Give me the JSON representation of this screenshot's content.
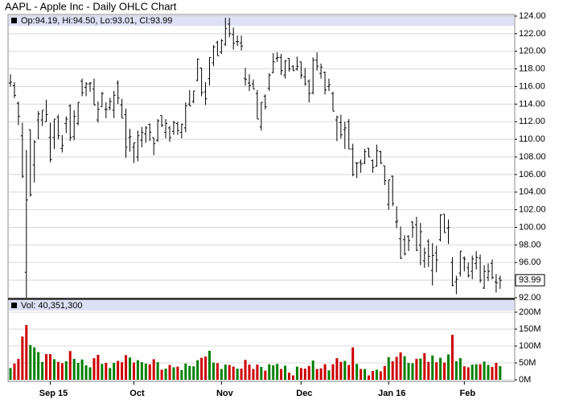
{
  "chart_data": {
    "type": "ohlc",
    "title": "AAPL - Apple Inc - Daily OHLC Chart",
    "ohlc_label": "Op:94.19, Hi:94.50, Lo:93.01, Cl:93.99",
    "volume_label": "Vol: 40,351,300",
    "categories": [
      null,
      null,
      null,
      null,
      null,
      null,
      null,
      null,
      null,
      null,
      "Sep 15",
      null,
      null,
      null,
      null,
      null,
      null,
      null,
      null,
      null,
      null,
      null,
      null,
      null,
      null,
      null,
      null,
      null,
      null,
      null,
      null,
      "Oct",
      null,
      null,
      null,
      null,
      null,
      null,
      null,
      null,
      null,
      null,
      null,
      null,
      null,
      null,
      null,
      null,
      null,
      null,
      null,
      null,
      null,
      "Nov",
      null,
      null,
      null,
      null,
      null,
      null,
      null,
      null,
      null,
      null,
      null,
      null,
      null,
      null,
      null,
      null,
      null,
      null,
      null,
      "Dec",
      null,
      null,
      null,
      null,
      null,
      null,
      null,
      null,
      null,
      null,
      null,
      null,
      null,
      null,
      null,
      null,
      null,
      null,
      null,
      null,
      null,
      "Jan 16",
      null,
      null,
      null,
      null,
      null,
      null,
      null,
      null,
      null,
      null,
      null,
      null,
      null,
      null,
      null,
      null,
      null,
      null,
      "Feb",
      null,
      null,
      null,
      null,
      null,
      null,
      null,
      null,
      null
    ],
    "open": [
      116.4,
      116.1,
      114.1,
      110.4,
      94.9,
      111.1,
      107.1,
      112.2,
      112.2,
      112.0,
      110.2,
      110.2,
      112.5,
      108.97,
      111.8,
      113.8,
      110.3,
      111.8,
      116.6,
      115.9,
      116.3,
      115.7,
      112.2,
      113.7,
      113.4,
      113.6,
      113.3,
      116.4,
      113.9,
      112.8,
      110.2,
      109.1,
      108.0,
      109.9,
      110.6,
      111.7,
      110.2,
      109.9,
      112.7,
      110.8,
      111.3,
      110.9,
      111.8,
      110.8,
      111.3,
      114.0,
      114.3,
      116.7,
      118.1,
      115.4,
      116.9,
      118.7,
      120.99,
      119.9,
      120.8,
      123.1,
      121.9,
      121.1,
      120.96,
      116.9,
      116.4,
      116.3,
      115.2,
      111.4,
      114.9,
      115.8,
      117.6,
      119.2,
      119.3,
      117.3,
      119.2,
      118.3,
      117.99,
      118.8,
      117.1,
      116.6,
      115.3,
      118.98,
      117.5,
      117.6,
      116.0,
      115.2,
      112.2,
      111.9,
      111.1,
      112.0,
      108.9,
      107.3,
      107.4,
      107.3,
      109.0,
      107.6,
      106.96,
      108.6,
      107.0,
      102.6,
      105.8,
      100.6,
      98.7,
      98.6,
      98.97,
      100.6,
      100.3,
      97.96,
      96.2,
      98.4,
      95.1,
      97.1,
      98.6,
      101.5,
      99.9,
      96.0,
      93.8,
      94.8,
      96.5,
      95.4,
      95.0,
      95.9,
      96.5,
      93.1,
      94.3,
      95.9,
      93.8,
      94.19
    ],
    "high": [
      117.4,
      116.5,
      114.3,
      111.9,
      108.8,
      111.1,
      109.9,
      113.2,
      113.3,
      114.5,
      111.9,
      112.3,
      112.8,
      110.5,
      112.6,
      114.0,
      113.3,
      114.2,
      116.9,
      116.5,
      116.5,
      116.9,
      114.3,
      115.4,
      114.2,
      114.7,
      115.5,
      116.7,
      114.6,
      113.5,
      111.2,
      109.6,
      111.0,
      111.4,
      111.5,
      111.8,
      110.2,
      112.3,
      112.7,
      112.3,
      111.5,
      112.1,
      112.0,
      111.8,
      114.2,
      115.6,
      115.5,
      119.2,
      118.1,
      116.5,
      119.3,
      120.7,
      121.2,
      121.4,
      123.8,
      123.8,
      122.7,
      121.8,
      121.8,
      118.1,
      117.4,
      116.8,
      115.6,
      114.2,
      115.1,
      117.5,
      119.8,
      119.9,
      119.7,
      119.0,
      119.2,
      118.4,
      119.4,
      118.8,
      118.1,
      116.8,
      119.3,
      119.9,
      118.6,
      117.7,
      116.9,
      115.4,
      112.7,
      112.8,
      112.0,
      112.3,
      109.5,
      107.4,
      107.7,
      108.9,
      109.0,
      107.7,
      109.4,
      108.7,
      107.0,
      105.4,
      105.9,
      102.4,
      100.1,
      99.1,
      99.1,
      100.7,
      101.2,
      100.5,
      97.7,
      98.65,
      98.2,
      97.9,
      101.5,
      101.5,
      100.9,
      96.6,
      94.5,
      97.3,
      96.7,
      96.0,
      96.8,
      97.3,
      96.9,
      95.7,
      95.9,
      96.35,
      94.7,
      94.5
    ],
    "low": [
      116.0,
      114.7,
      111.6,
      105.6,
      92.0,
      103.5,
      105.1,
      110.0,
      111.5,
      112.0,
      107.4,
      108.9,
      110.0,
      108.5,
      110.7,
      109.8,
      109.9,
      111.6,
      114.9,
      114.9,
      115.4,
      113.9,
      111.9,
      113.7,
      112.4,
      113.3,
      112.4,
      114.0,
      112.4,
      107.9,
      108.6,
      107.3,
      107.5,
      109.1,
      109.6,
      109.8,
      108.2,
      109.7,
      111.4,
      110.1,
      109.7,
      110.5,
      110.5,
      110.1,
      110.8,
      113.8,
      114.1,
      116.6,
      114.9,
      113.9,
      116.1,
      118.3,
      119.5,
      119.7,
      120.6,
      121.6,
      120.2,
      120.6,
      120.1,
      116.1,
      115.5,
      115.7,
      112.3,
      111.0,
      113.4,
      115.5,
      117.5,
      118.8,
      117.3,
      116.9,
      117.7,
      117.8,
      117.8,
      116.9,
      116.1,
      114.2,
      115.1,
      117.8,
      116.9,
      115.1,
      115.5,
      113.2,
      109.8,
      110.1,
      108.9,
      108.9,
      105.8,
      105.6,
      106.2,
      107.2,
      107.95,
      106.2,
      106.9,
      107.2,
      104.8,
      102.0,
      102.4,
      99.9,
      96.4,
      96.8,
      97.3,
      98.8,
      97.3,
      95.7,
      95.4,
      95.5,
      93.4,
      94.9,
      98.4,
      99.4,
      98.1,
      93.3,
      92.4,
      94.4,
      95.0,
      94.3,
      94.1,
      95.2,
      93.7,
      93.0,
      93.9,
      94.1,
      92.6,
      93.01
    ],
    "close": [
      116.5,
      115.0,
      112.6,
      105.8,
      103.1,
      103.7,
      109.7,
      112.9,
      113.3,
      112.8,
      107.7,
      112.3,
      110.4,
      109.3,
      112.3,
      110.2,
      112.6,
      114.2,
      115.3,
      116.3,
      116.4,
      113.9,
      113.4,
      115.2,
      113.4,
      114.3,
      115.0,
      114.7,
      112.4,
      109.1,
      110.3,
      109.6,
      110.4,
      110.8,
      111.3,
      110.8,
      109.5,
      112.1,
      111.6,
      111.8,
      110.2,
      111.9,
      111.0,
      111.7,
      113.8,
      113.8,
      115.5,
      119.1,
      115.3,
      114.6,
      119.3,
      120.5,
      119.5,
      121.2,
      122.6,
      122.0,
      120.9,
      121.1,
      120.6,
      116.8,
      116.1,
      115.7,
      112.3,
      114.2,
      113.7,
      117.3,
      118.8,
      119.3,
      117.8,
      118.9,
      118.0,
      117.8,
      118.3,
      117.3,
      116.3,
      115.2,
      119.0,
      118.3,
      118.2,
      115.6,
      116.2,
      113.2,
      112.5,
      110.5,
      111.3,
      108.9,
      106.0,
      107.3,
      107.2,
      108.6,
      108.0,
      106.8,
      108.7,
      107.3,
      105.3,
      105.4,
      102.7,
      100.7,
      96.5,
      97.0,
      98.5,
      100.0,
      97.4,
      99.5,
      97.1,
      96.7,
      96.8,
      96.3,
      101.4,
      99.4,
      99.99,
      93.4,
      94.1,
      97.3,
      96.4,
      94.5,
      96.4,
      96.6,
      94.0,
      95.0,
      95.0,
      94.3,
      93.7,
      93.99
    ],
    "volume": [
      35,
      48,
      62,
      128,
      162,
      103,
      96,
      82,
      53,
      76,
      76,
      61,
      53,
      49,
      55,
      85,
      62,
      50,
      60,
      43,
      37,
      64,
      74,
      47,
      50,
      35,
      50,
      56,
      52,
      73,
      66,
      51,
      58,
      52,
      48,
      46,
      61,
      52,
      30,
      33,
      44,
      37,
      39,
      29,
      48,
      41,
      40,
      58,
      65,
      69,
      86,
      51,
      49,
      32,
      45,
      44,
      39,
      33,
      33,
      59,
      45,
      32,
      45,
      38,
      27,
      46,
      43,
      47,
      32,
      42,
      21,
      13,
      39,
      35,
      33,
      41,
      57,
      32,
      34,
      46,
      28,
      46,
      64,
      53,
      56,
      44,
      96,
      47,
      32,
      32,
      13,
      26,
      30,
      25,
      41,
      67,
      55,
      68,
      81,
      70,
      50,
      49,
      62,
      63,
      79,
      53,
      72,
      52,
      65,
      51,
      75,
      133,
      55,
      64,
      40,
      37,
      45,
      46,
      46,
      54,
      44,
      38,
      50,
      40.3513
    ],
    "ylim": [
      92,
      124
    ],
    "yticks": [
      {
        "value": 92,
        "label": "92.00"
      },
      {
        "value": 94,
        "label": "94.00"
      },
      {
        "value": 96,
        "label": "96.00"
      },
      {
        "value": 98,
        "label": "98.00"
      },
      {
        "value": 100,
        "label": "100.00"
      },
      {
        "value": 102,
        "label": "102.00"
      },
      {
        "value": 104,
        "label": "104.00"
      },
      {
        "value": 106,
        "label": "106.00"
      },
      {
        "value": 108,
        "label": "108.00"
      },
      {
        "value": 110,
        "label": "110.00"
      },
      {
        "value": 112,
        "label": "112.00"
      },
      {
        "value": 114,
        "label": "114.00"
      },
      {
        "value": 116,
        "label": "116.00"
      },
      {
        "value": 118,
        "label": "118.00"
      },
      {
        "value": 120,
        "label": "120.00"
      },
      {
        "value": 122,
        "label": "122.00"
      },
      {
        "value": 124,
        "label": "124.00"
      }
    ],
    "volume_ylim": [
      0,
      200
    ],
    "volume_yticks": [
      {
        "value": 0,
        "label": "0M"
      },
      {
        "value": 50,
        "label": "50M"
      },
      {
        "value": 100,
        "label": "100M"
      },
      {
        "value": 150,
        "label": "150M"
      },
      {
        "value": 200,
        "label": "200M"
      }
    ],
    "grid": true,
    "bar_color": "#000000",
    "up_color": "#008000",
    "down_color": "#cc0000"
  }
}
